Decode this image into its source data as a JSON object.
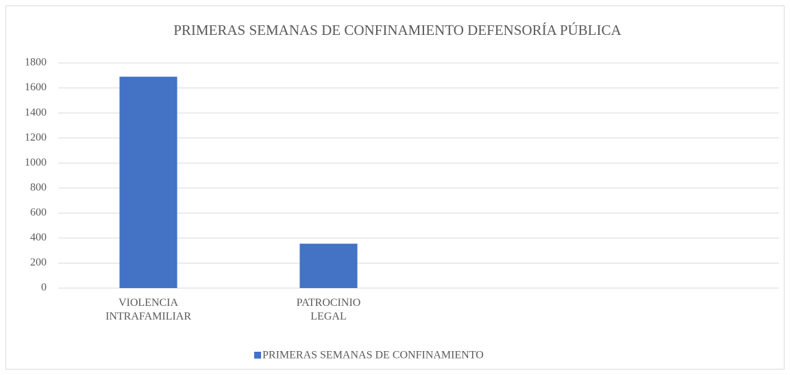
{
  "chart_data": {
    "type": "bar",
    "title": "PRIMERAS SEMANAS DE CONFINAMIENTO DEFENSORÍA PÚBLICA",
    "categories": [
      "VIOLENCIA INTRAFAMILIAR",
      "PATROCINIO LEGAL",
      null,
      null
    ],
    "series": [
      {
        "name": "PRIMERAS SEMANAS DE CONFINAMIENTO",
        "color": "#4472c4",
        "values": [
          1690,
          355,
          null,
          null
        ]
      }
    ],
    "ylim": [
      0,
      1800
    ],
    "yticks": [
      0,
      200,
      400,
      600,
      800,
      1000,
      1200,
      1400,
      1600,
      1800
    ],
    "grid": true,
    "legend": "bottom"
  }
}
